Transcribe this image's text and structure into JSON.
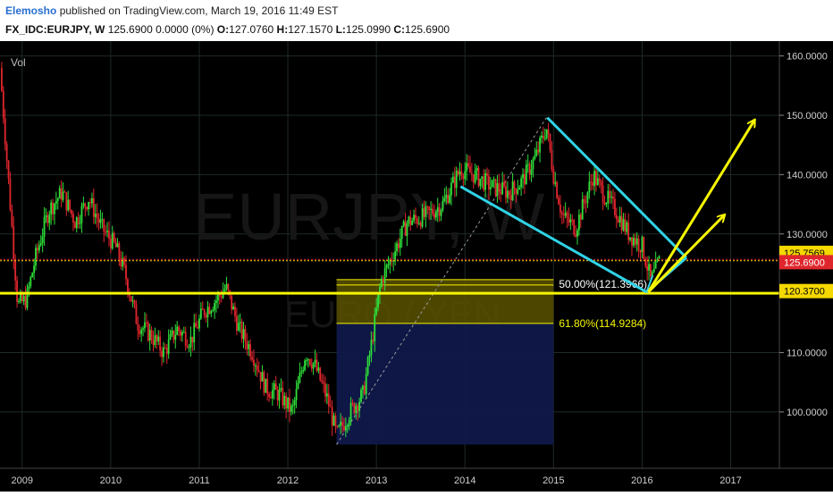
{
  "header": {
    "author": "Elemosho",
    "published": " published on TradingView.com, March 19, 2016 11:49 EST",
    "symbol": "FX_IDC:EURJPY, W",
    "last": " 125.6900 0.0000 (0%) ",
    "o_label": "O:",
    "o_value": "127.0760",
    "h_label": " H:",
    "h_value": "127.1570",
    "l_label": " L:",
    "l_value": "125.0990",
    "c_label": " C:",
    "c_value": "125.6900"
  },
  "chart_data": {
    "type": "line",
    "vol_label": "Vol",
    "watermark": "EURJPY, W",
    "watermark_sub": "EURO / YEN",
    "x_ticks": [
      "2009",
      "2010",
      "2011",
      "2012",
      "2013",
      "2014",
      "2015",
      "2016",
      "2017"
    ],
    "y_ticks": [
      "100.0000",
      "110.0000",
      "120.0000",
      "130.0000",
      "140.0000",
      "150.0000",
      "160.0000"
    ],
    "ylim": [
      90.5,
      162.5
    ],
    "xlim": [
      2008.75,
      2017.55
    ],
    "price_labels": [
      {
        "value": 125.7569,
        "text": "125.7569",
        "color": "#f5d800"
      },
      {
        "value": 125.69,
        "text": "125.6900",
        "color": "#e0262d"
      },
      {
        "value": 120.37,
        "text": "120.3700",
        "color": "#f5d800"
      }
    ],
    "fib_levels": [
      {
        "label": "50.00%(121.3966)",
        "value": 121.3966
      },
      {
        "label": "61.80%(114.9284)",
        "value": 114.9284
      }
    ],
    "support_level": 120.0,
    "resistance_level": 125.7,
    "series": [
      {
        "x": [
          2008.75,
          2008.85,
          2008.95,
          2009.05,
          2009.15,
          2009.3,
          2009.45,
          2009.6,
          2009.75,
          2009.9,
          2010.05,
          2010.15,
          2010.3,
          2010.45,
          2010.6,
          2010.75,
          2010.9,
          2011.05,
          2011.2,
          2011.3,
          2011.45,
          2011.6,
          2011.75,
          2011.9,
          2012.05,
          2012.2,
          2012.3,
          2012.45,
          2012.55,
          2012.7,
          2012.85,
          2012.95,
          2013.05,
          2013.2,
          2013.35,
          2013.55,
          2013.75,
          2013.95,
          2014.1,
          2014.3,
          2014.5,
          2014.65,
          2014.8,
          2014.92,
          2015.0,
          2015.1,
          2015.25,
          2015.45,
          2015.55,
          2015.7,
          2015.85,
          2016.0,
          2016.1,
          2016.2
        ],
        "values": [
          158,
          138,
          118,
          119,
          126,
          134,
          137,
          132,
          136,
          131,
          128,
          124,
          115,
          113,
          110,
          114,
          112,
          117,
          119,
          121,
          114,
          110,
          104,
          103,
          100,
          110,
          108,
          102,
          96,
          100,
          103,
          112,
          122,
          127,
          132,
          133,
          135,
          141,
          140,
          138,
          137,
          139,
          143,
          148,
          140,
          133,
          131,
          140,
          137,
          134,
          130,
          128,
          122,
          125.69
        ]
      }
    ]
  }
}
